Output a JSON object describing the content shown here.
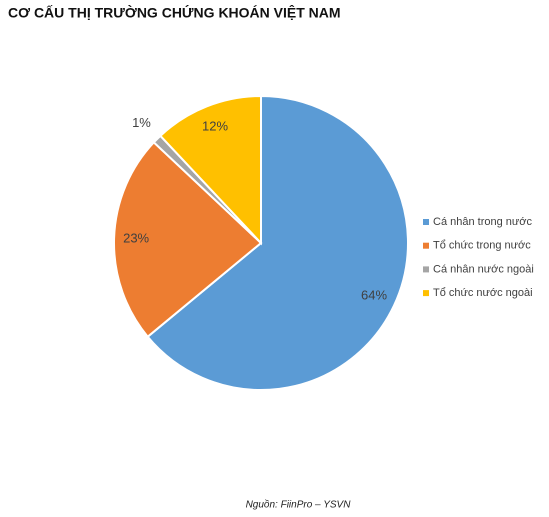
{
  "chart_data": {
    "type": "pie",
    "title": "CƠ CẤU THỊ TRƯỜNG CHỨNG KHOÁN VIỆT NAM",
    "categories": [
      "Cá nhân trong nước",
      "Tổ chức trong nước",
      "Cá nhân nước ngoài",
      "Tổ chức nước ngoài"
    ],
    "values": [
      64,
      23,
      1,
      12
    ],
    "value_labels": [
      "64%",
      "23%",
      "1%",
      "12%"
    ],
    "colors": [
      "#5b9bd5",
      "#ed7d31",
      "#a5a5a5",
      "#ffc000"
    ],
    "legend": "right",
    "source": "Nguồn: FiinPro – YSVN"
  }
}
